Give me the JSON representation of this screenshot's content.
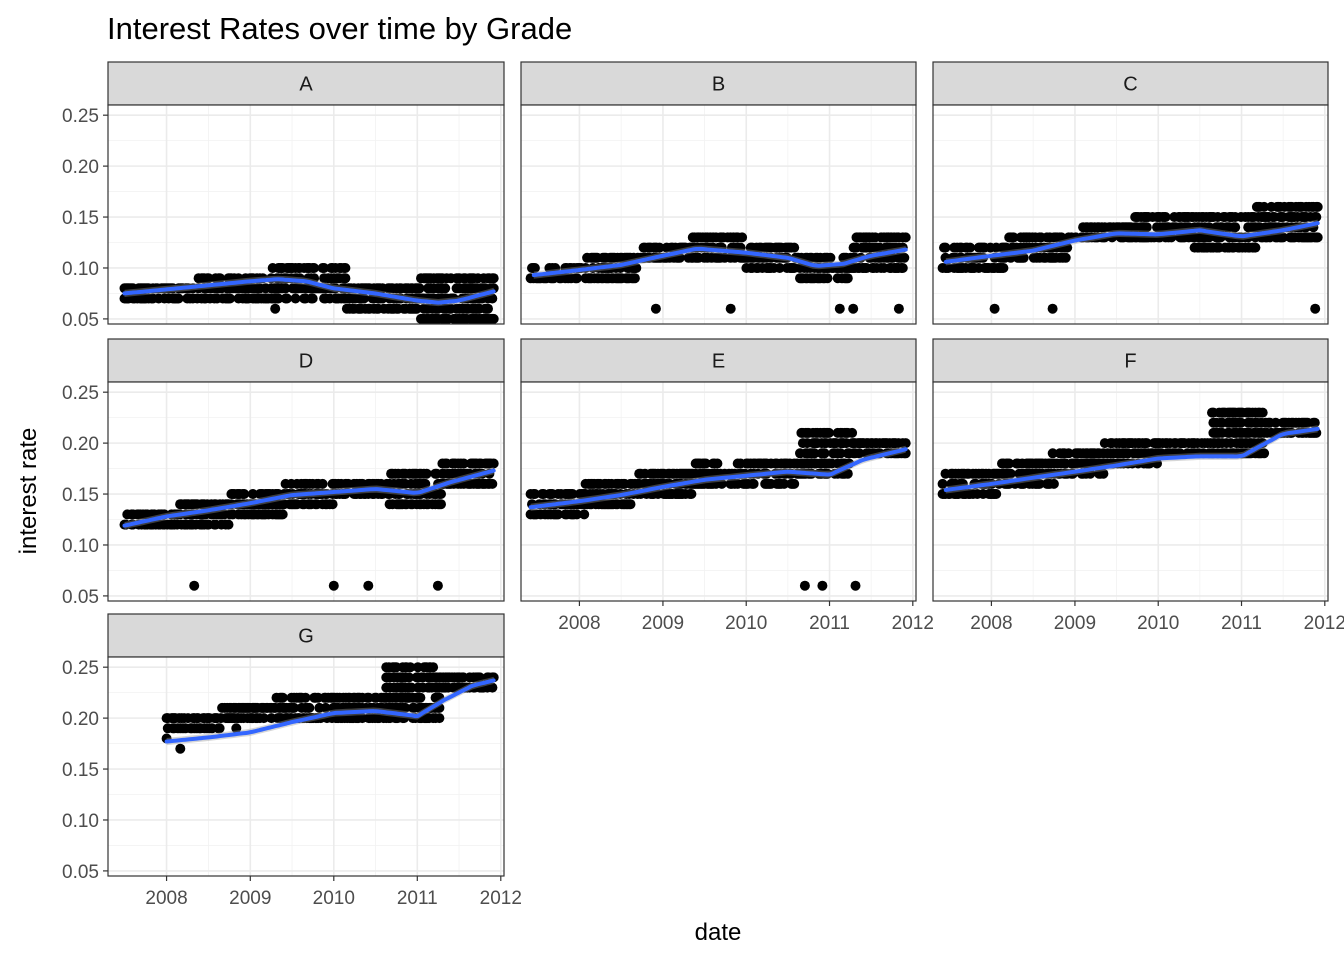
{
  "chart_data": {
    "type": "scatter",
    "title": "Interest Rates over time by Grade",
    "xlabel": "date",
    "ylabel": "interest rate",
    "xlim": [
      "2007-04-20",
      "2012-01-15"
    ],
    "ylim": [
      0.045,
      0.26
    ],
    "x_ticks": [
      "2008",
      "2009",
      "2010",
      "2011",
      "2012"
    ],
    "y_ticks": [
      "0.05",
      "0.10",
      "0.15",
      "0.20",
      "0.25"
    ],
    "y_tick_values": [
      0.05,
      0.1,
      0.15,
      0.2,
      0.25
    ],
    "facet_layout": {
      "columns": 3,
      "rows": 3
    },
    "colors": {
      "points": "#000000",
      "smooth_line": "#3366ff",
      "ribbon": "#999999",
      "strip": "#d9d9d9"
    },
    "grid": true,
    "panels": [
      {
        "label": "A",
        "points": {
          "x_range": [
            "2007-07-01",
            "2011-12-01"
          ],
          "dense_bands": [
            [
              0.07,
              0.08
            ],
            [
              0.07,
              0.09
            ],
            [
              0.07,
              0.1
            ],
            [
              0.06,
              0.08
            ],
            [
              0.05,
              0.09
            ]
          ],
          "outliers": [
            {
              "x": "2008-12-15",
              "y": 0.07
            },
            {
              "x": "2009-03-01",
              "y": 0.07
            },
            {
              "x": "2009-04-20",
              "y": 0.06
            }
          ]
        },
        "smooth": {
          "x": [
            "2007-07-01",
            "2008-01-01",
            "2008-07-01",
            "2009-01-01",
            "2009-05-01",
            "2009-09-01",
            "2010-01-01",
            "2010-07-01",
            "2011-01-01",
            "2011-04-01",
            "2011-07-01",
            "2011-12-01"
          ],
          "y": [
            0.075,
            0.079,
            0.083,
            0.087,
            0.089,
            0.087,
            0.08,
            0.075,
            0.068,
            0.066,
            0.068,
            0.077
          ]
        }
      },
      {
        "label": "B",
        "points": {
          "x_range": [
            "2007-06-01",
            "2011-12-01"
          ],
          "dense_bands": [
            [
              0.09,
              0.1
            ],
            [
              0.09,
              0.11
            ],
            [
              0.11,
              0.12
            ],
            [
              0.11,
              0.13
            ],
            [
              0.1,
              0.12
            ],
            [
              0.09,
              0.11
            ],
            [
              0.1,
              0.13
            ]
          ],
          "outliers": [
            {
              "x": "2008-12-01",
              "y": 0.06
            },
            {
              "x": "2009-10-25",
              "y": 0.06
            },
            {
              "x": "2011-02-15",
              "y": 0.06
            },
            {
              "x": "2011-04-15",
              "y": 0.06
            },
            {
              "x": "2011-11-01",
              "y": 0.06
            }
          ]
        },
        "smooth": {
          "x": [
            "2007-06-15",
            "2008-01-01",
            "2008-07-01",
            "2009-01-01",
            "2009-06-01",
            "2010-01-01",
            "2010-07-01",
            "2010-11-01",
            "2011-03-01",
            "2011-07-01",
            "2011-12-01"
          ],
          "y": [
            0.093,
            0.098,
            0.103,
            0.112,
            0.119,
            0.115,
            0.11,
            0.102,
            0.104,
            0.112,
            0.118
          ]
        }
      },
      {
        "label": "C",
        "points": {
          "x_range": [
            "2007-06-01",
            "2011-12-01"
          ],
          "dense_bands": [
            [
              0.1,
              0.12
            ],
            [
              0.11,
              0.13
            ],
            [
              0.13,
              0.14
            ],
            [
              0.13,
              0.15
            ],
            [
              0.12,
              0.15
            ],
            [
              0.13,
              0.16
            ]
          ],
          "outliers": [
            {
              "x": "2008-01-15",
              "y": 0.06
            },
            {
              "x": "2008-09-25",
              "y": 0.06
            },
            {
              "x": "2011-11-20",
              "y": 0.06
            }
          ]
        },
        "smooth": {
          "x": [
            "2007-06-15",
            "2008-01-01",
            "2008-07-01",
            "2009-01-01",
            "2009-07-01",
            "2010-01-01",
            "2010-07-01",
            "2011-01-01",
            "2011-07-01",
            "2011-12-01"
          ],
          "y": [
            0.106,
            0.112,
            0.117,
            0.127,
            0.134,
            0.133,
            0.137,
            0.131,
            0.137,
            0.144
          ]
        }
      },
      {
        "label": "D",
        "points": {
          "x_range": [
            "2007-07-01",
            "2011-12-01"
          ],
          "dense_bands": [
            [
              0.12,
              0.13
            ],
            [
              0.12,
              0.14
            ],
            [
              0.13,
              0.15
            ],
            [
              0.14,
              0.16
            ],
            [
              0.15,
              0.16
            ],
            [
              0.14,
              0.17
            ],
            [
              0.16,
              0.18
            ]
          ],
          "outliers": [
            {
              "x": "2008-05-01",
              "y": 0.06
            },
            {
              "x": "2010-01-01",
              "y": 0.06
            },
            {
              "x": "2010-06-01",
              "y": 0.06
            },
            {
              "x": "2011-04-01",
              "y": 0.06
            }
          ]
        },
        "smooth": {
          "x": [
            "2007-07-01",
            "2008-01-01",
            "2008-07-01",
            "2009-01-01",
            "2009-07-01",
            "2010-01-01",
            "2010-07-01",
            "2011-01-01",
            "2011-06-01",
            "2011-12-01"
          ],
          "y": [
            0.119,
            0.128,
            0.134,
            0.141,
            0.149,
            0.152,
            0.155,
            0.151,
            0.162,
            0.173
          ]
        }
      },
      {
        "label": "E",
        "points": {
          "x_range": [
            "2007-06-01",
            "2011-12-01"
          ],
          "dense_bands": [
            [
              0.13,
              0.15
            ],
            [
              0.14,
              0.16
            ],
            [
              0.15,
              0.17
            ],
            [
              0.16,
              0.18
            ],
            [
              0.16,
              0.18
            ],
            [
              0.17,
              0.21
            ],
            [
              0.19,
              0.2
            ]
          ],
          "outliers": [
            {
              "x": "2010-09-15",
              "y": 0.06
            },
            {
              "x": "2010-12-01",
              "y": 0.06
            },
            {
              "x": "2011-04-25",
              "y": 0.06
            }
          ]
        },
        "smooth": {
          "x": [
            "2007-06-01",
            "2008-01-01",
            "2008-07-01",
            "2009-01-01",
            "2009-07-01",
            "2010-01-01",
            "2010-07-01",
            "2011-01-01",
            "2011-06-01",
            "2011-12-01"
          ],
          "y": [
            0.137,
            0.143,
            0.149,
            0.157,
            0.164,
            0.168,
            0.172,
            0.169,
            0.184,
            0.194
          ]
        }
      },
      {
        "label": "F",
        "points": {
          "x_range": [
            "2007-06-01",
            "2011-12-01"
          ],
          "dense_bands": [
            [
              0.15,
              0.17
            ],
            [
              0.16,
              0.18
            ],
            [
              0.17,
              0.19
            ],
            [
              0.18,
              0.2
            ],
            [
              0.19,
              0.2
            ],
            [
              0.19,
              0.23
            ],
            [
              0.21,
              0.22
            ]
          ],
          "outliers": [
            {
              "x": "2008-10-01",
              "y": 0.16
            }
          ]
        },
        "smooth": {
          "x": [
            "2007-06-15",
            "2008-01-01",
            "2008-07-01",
            "2009-01-01",
            "2009-07-01",
            "2010-01-01",
            "2010-07-01",
            "2011-01-01",
            "2011-07-01",
            "2011-12-01"
          ],
          "y": [
            0.154,
            0.16,
            0.166,
            0.172,
            0.178,
            0.185,
            0.187,
            0.187,
            0.209,
            0.214
          ]
        }
      },
      {
        "label": "G",
        "points": {
          "x_range": [
            "2008-01-01",
            "2011-12-01"
          ],
          "dense_bands": [
            [
              0.19,
              0.2
            ],
            [
              0.2,
              0.21
            ],
            [
              0.2,
              0.22
            ],
            [
              0.2,
              0.22
            ],
            [
              0.2,
              0.25
            ],
            [
              0.23,
              0.24
            ]
          ],
          "outliers": [
            {
              "x": "2008-01-01",
              "y": 0.18
            },
            {
              "x": "2008-03-01",
              "y": 0.17
            },
            {
              "x": "2008-11-01",
              "y": 0.19
            }
          ]
        },
        "smooth": {
          "x": [
            "2008-01-01",
            "2008-07-01",
            "2009-01-01",
            "2009-07-01",
            "2010-01-01",
            "2010-07-01",
            "2011-01-01",
            "2011-05-01",
            "2011-09-01",
            "2011-12-01"
          ],
          "y": [
            0.177,
            0.181,
            0.186,
            0.196,
            0.205,
            0.207,
            0.202,
            0.218,
            0.232,
            0.237
          ]
        }
      }
    ]
  }
}
